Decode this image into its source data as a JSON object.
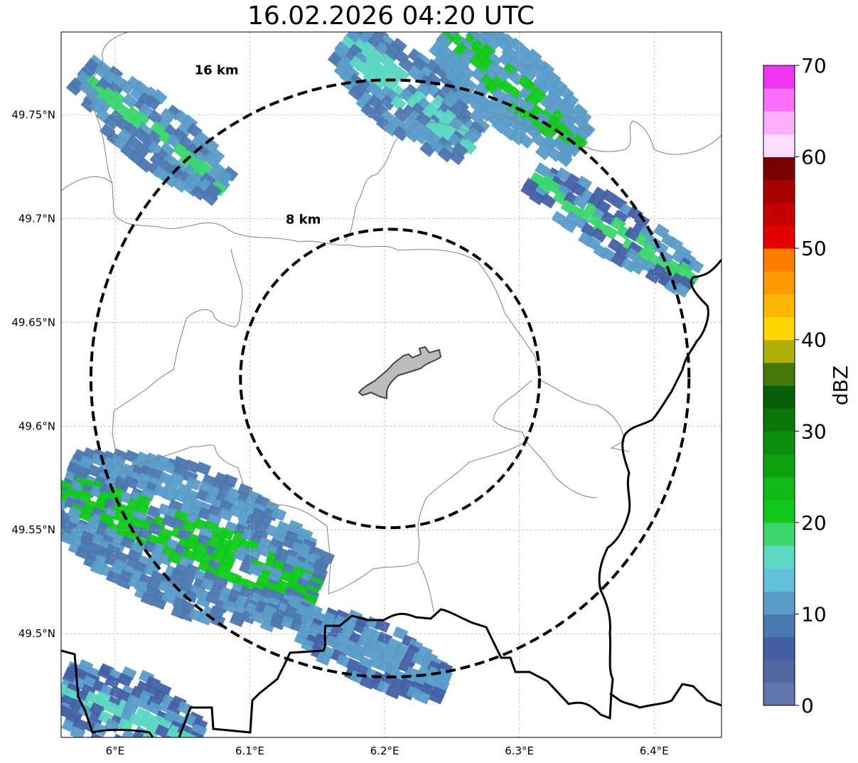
{
  "title": "16.02.2026 04:20 UTC",
  "map": {
    "lon_range": [
      5.96,
      6.45
    ],
    "lat_range": [
      49.45,
      49.79
    ],
    "lon_ticks": [
      {
        "value": 6.0,
        "label": "6°E"
      },
      {
        "value": 6.1,
        "label": "6.1°E"
      },
      {
        "value": 6.2,
        "label": "6.2°E"
      },
      {
        "value": 6.3,
        "label": "6.3°E"
      },
      {
        "value": 6.4,
        "label": "6.4°E"
      }
    ],
    "lat_ticks": [
      {
        "value": 49.75,
        "label": "49.75°N"
      },
      {
        "value": 49.7,
        "label": "49.7°N"
      },
      {
        "value": 49.65,
        "label": "49.65°N"
      },
      {
        "value": 49.6,
        "label": "49.6°N"
      },
      {
        "value": 49.55,
        "label": "49.55°N"
      },
      {
        "value": 49.5,
        "label": "49.5°N"
      }
    ],
    "center": {
      "lon": 6.204,
      "lat": 49.623
    },
    "rings": [
      {
        "label": "8 km",
        "radius_km": 8
      },
      {
        "label": "16 km",
        "radius_km": 16
      }
    ]
  },
  "colorbar": {
    "label": "dBZ",
    "range": [
      0,
      70
    ],
    "tick_labels": [
      "0",
      "10",
      "20",
      "30",
      "40",
      "50",
      "60",
      "70"
    ],
    "colors": [
      "#6174ad",
      "#52679f",
      "#4360a7",
      "#4c78b0",
      "#5a9cc8",
      "#64c1dc",
      "#5bd7c2",
      "#3cd66e",
      "#12c91b",
      "#11b817",
      "#0ea10f",
      "#0b8d0d",
      "#097808",
      "#085f0a",
      "#457a0a",
      "#b0b00a",
      "#fdd600",
      "#fdb700",
      "#fd9a00",
      "#fd7d00",
      "#e20000",
      "#c40000",
      "#a60000",
      "#7a0000",
      "#fddcfd",
      "#fdaffd",
      "#fd6ffd",
      "#ef35ef"
    ]
  },
  "echoes": [
    {
      "name": "nw-band-upper",
      "from": [
        5.975,
        49.77
      ],
      "to": [
        6.08,
        49.715
      ],
      "width_km": 3.2,
      "core": "#3cd66e",
      "edge": "#4c78b0"
    },
    {
      "name": "north-cell",
      "from": [
        6.17,
        49.785
      ],
      "to": [
        6.265,
        49.735
      ],
      "width_km": 4.0,
      "core": "#5bd7c2",
      "edge": "#4c78b0"
    },
    {
      "name": "ne-cell",
      "from": [
        6.245,
        49.79
      ],
      "to": [
        6.345,
        49.735
      ],
      "width_km": 4.0,
      "core": "#12c91b",
      "edge": "#5a9cc8"
    },
    {
      "name": "east-band",
      "from": [
        6.31,
        49.72
      ],
      "to": [
        6.43,
        49.67
      ],
      "width_km": 2.6,
      "core": "#3cd66e",
      "edge": "#4360a7"
    },
    {
      "name": "sw-band",
      "from": [
        5.96,
        49.57
      ],
      "to": [
        6.15,
        49.52
      ],
      "width_km": 7.5,
      "core": "#12c91b",
      "edge": "#4c78b0"
    },
    {
      "name": "south-band",
      "from": [
        6.14,
        49.505
      ],
      "to": [
        6.245,
        49.475
      ],
      "width_km": 3.0,
      "core": "#5a9cc8",
      "edge": "#4360a7"
    },
    {
      "name": "sw-corner-band",
      "from": [
        5.96,
        49.475
      ],
      "to": [
        6.06,
        49.445
      ],
      "width_km": 4.5,
      "core": "#5bd7c2",
      "edge": "#4360a7"
    }
  ]
}
